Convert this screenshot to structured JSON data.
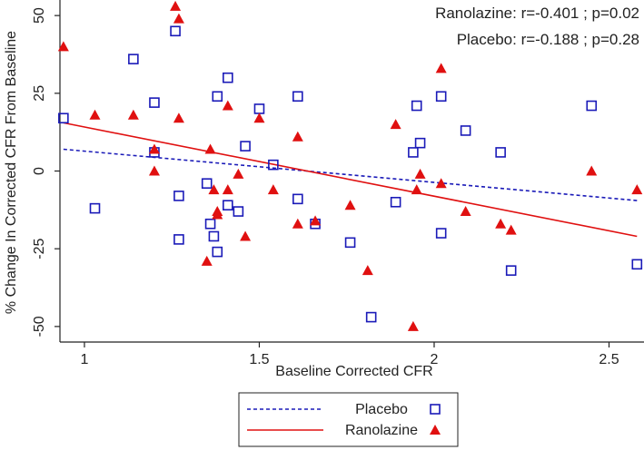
{
  "chart_data": {
    "type": "scatter",
    "title": "",
    "xlabel": "Baseline Corrected CFR",
    "ylabel": "% Change In Corrected CFR From Baseline",
    "xlim": [
      0.93,
      2.6
    ],
    "ylim": [
      -55,
      55
    ],
    "xticks": [
      1,
      1.5,
      2,
      2.5
    ],
    "xtick_labels": [
      "1",
      "1.5",
      "2",
      "2.5"
    ],
    "yticks": [
      50,
      25,
      0,
      -25,
      -50
    ],
    "ytick_labels": [
      "50",
      "25",
      "0",
      "-25",
      "-50"
    ],
    "grid": false,
    "legend_position": "bottom-center",
    "annotations": [
      "Ranolazine: r=-0.401 ; p=0.02",
      "Placebo: r=-0.188 ; p=0.28"
    ],
    "series": [
      {
        "name": "Placebo",
        "marker": "square",
        "color": "#1a1ab8",
        "fit_line": {
          "style": "dashed",
          "points": [
            [
              0.94,
              7
            ],
            [
              2.58,
              -9.5
            ]
          ]
        },
        "points": [
          [
            0.94,
            17
          ],
          [
            1.03,
            -12
          ],
          [
            1.14,
            36
          ],
          [
            1.2,
            22
          ],
          [
            1.2,
            6
          ],
          [
            1.26,
            45
          ],
          [
            1.27,
            -8
          ],
          [
            1.27,
            -22
          ],
          [
            1.35,
            -4
          ],
          [
            1.36,
            -17
          ],
          [
            1.37,
            -21
          ],
          [
            1.38,
            24
          ],
          [
            1.38,
            -26
          ],
          [
            1.41,
            30
          ],
          [
            1.41,
            -11
          ],
          [
            1.44,
            -13
          ],
          [
            1.46,
            8
          ],
          [
            1.5,
            20
          ],
          [
            1.54,
            2
          ],
          [
            1.61,
            24
          ],
          [
            1.61,
            -9
          ],
          [
            1.66,
            -17
          ],
          [
            1.76,
            -23
          ],
          [
            1.82,
            -47
          ],
          [
            1.89,
            -10
          ],
          [
            1.94,
            6
          ],
          [
            1.95,
            21
          ],
          [
            1.96,
            9
          ],
          [
            2.02,
            24
          ],
          [
            2.02,
            -20
          ],
          [
            2.09,
            13
          ],
          [
            2.19,
            6
          ],
          [
            2.22,
            -32
          ],
          [
            2.45,
            21
          ],
          [
            2.58,
            -30
          ]
        ]
      },
      {
        "name": "Ranolazine",
        "marker": "triangle",
        "color": "#e01010",
        "fit_line": {
          "style": "solid",
          "points": [
            [
              0.94,
              15.5
            ],
            [
              2.58,
              -21
            ]
          ]
        },
        "points": [
          [
            0.94,
            40
          ],
          [
            1.03,
            18
          ],
          [
            1.14,
            18
          ],
          [
            1.2,
            7
          ],
          [
            1.2,
            0
          ],
          [
            1.26,
            53
          ],
          [
            1.27,
            49
          ],
          [
            1.27,
            17
          ],
          [
            1.35,
            -29
          ],
          [
            1.36,
            7
          ],
          [
            1.37,
            -6
          ],
          [
            1.38,
            -13
          ],
          [
            1.38,
            -14
          ],
          [
            1.41,
            21
          ],
          [
            1.41,
            -6
          ],
          [
            1.44,
            -1
          ],
          [
            1.46,
            -21
          ],
          [
            1.5,
            17
          ],
          [
            1.54,
            -6
          ],
          [
            1.61,
            11
          ],
          [
            1.61,
            -17
          ],
          [
            1.66,
            -16
          ],
          [
            1.76,
            -11
          ],
          [
            1.81,
            -32
          ],
          [
            1.89,
            15
          ],
          [
            1.94,
            -50
          ],
          [
            1.95,
            -6
          ],
          [
            1.96,
            -1
          ],
          [
            2.02,
            33
          ],
          [
            2.02,
            -4
          ],
          [
            2.09,
            -13
          ],
          [
            2.19,
            -17
          ],
          [
            2.22,
            -19
          ],
          [
            2.45,
            0
          ],
          [
            2.58,
            -6
          ]
        ]
      }
    ]
  }
}
